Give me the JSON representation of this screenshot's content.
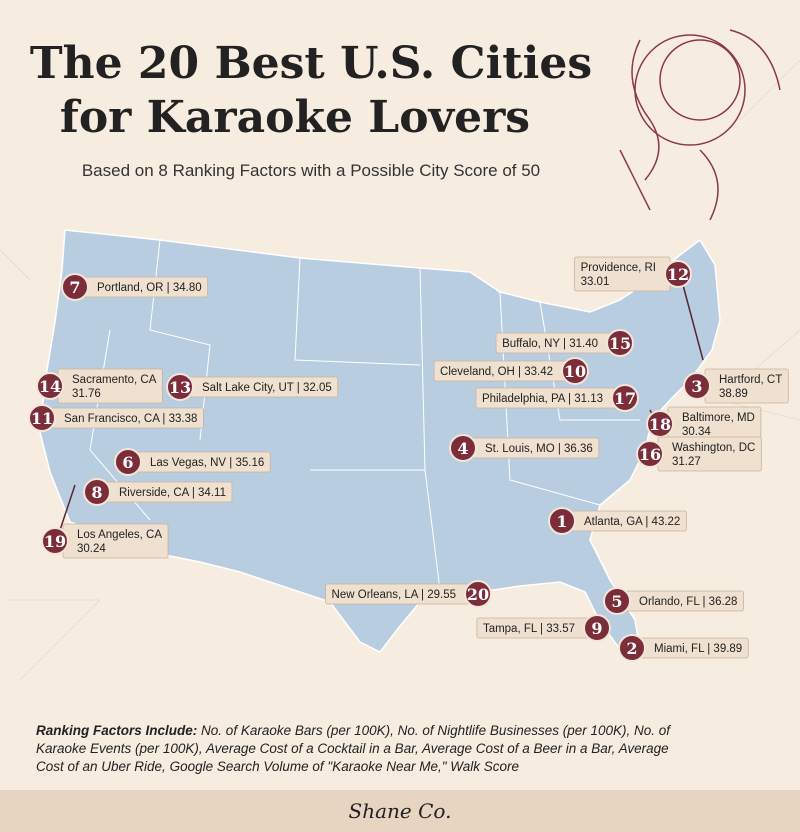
{
  "title": [
    "The 20 Best U.S. Cities",
    "for Karaoke Lovers"
  ],
  "subtitle": "Based on 8 Ranking Factors with a Possible City Score of 50",
  "cities": [
    {
      "rank": 7,
      "lines": [
        "Portland, OR | 34.80"
      ]
    },
    {
      "rank": 12,
      "lines": [
        "Providence, RI",
        "33.01"
      ]
    },
    {
      "rank": 15,
      "lines": [
        "Buffalo, NY | 31.40"
      ]
    },
    {
      "rank": 10,
      "lines": [
        "Cleveland, OH | 33.42"
      ]
    },
    {
      "rank": 3,
      "lines": [
        "Hartford, CT",
        "38.89"
      ]
    },
    {
      "rank": 14,
      "lines": [
        "Sacramento, CA",
        "31.76"
      ]
    },
    {
      "rank": 13,
      "lines": [
        "Salt Lake City, UT | 32.05"
      ]
    },
    {
      "rank": 17,
      "lines": [
        "Philadelphia, PA | 31.13"
      ]
    },
    {
      "rank": 11,
      "lines": [
        "San Francisco, CA | 33.38"
      ]
    },
    {
      "rank": 18,
      "lines": [
        "Baltimore, MD",
        "30.34"
      ]
    },
    {
      "rank": 4,
      "lines": [
        "St. Louis, MO | 36.36"
      ]
    },
    {
      "rank": 16,
      "lines": [
        "Washington, DC",
        "31.27"
      ]
    },
    {
      "rank": 6,
      "lines": [
        "Las Vegas, NV | 35.16"
      ]
    },
    {
      "rank": 8,
      "lines": [
        "Riverside, CA | 34.11"
      ]
    },
    {
      "rank": 19,
      "lines": [
        "Los Angeles, CA",
        "30.24"
      ]
    },
    {
      "rank": 1,
      "lines": [
        "Atlanta, GA | 43.22"
      ]
    },
    {
      "rank": 20,
      "lines": [
        "New Orleans, LA | 29.55"
      ]
    },
    {
      "rank": 5,
      "lines": [
        "Orlando, FL | 36.28"
      ]
    },
    {
      "rank": 9,
      "lines": [
        "Tampa, FL | 33.57"
      ]
    },
    {
      "rank": 2,
      "lines": [
        "Miami, FL | 39.89"
      ]
    }
  ],
  "footnote": {
    "lead": "Ranking Factors Include:",
    "text": [
      "No. of Karaoke Bars (per 100K), No. of Nightlife Businesses (per 100K), No. of",
      "Karaoke Events (per 100K), Average Cost of a Cocktail in a Bar, Average Cost of a Beer in a Bar, Average",
      "Cost of an Uber Ride, Google Search Volume of \"Karaoke Near Me,\" Walk Score"
    ]
  },
  "brand": "Shane Co."
}
